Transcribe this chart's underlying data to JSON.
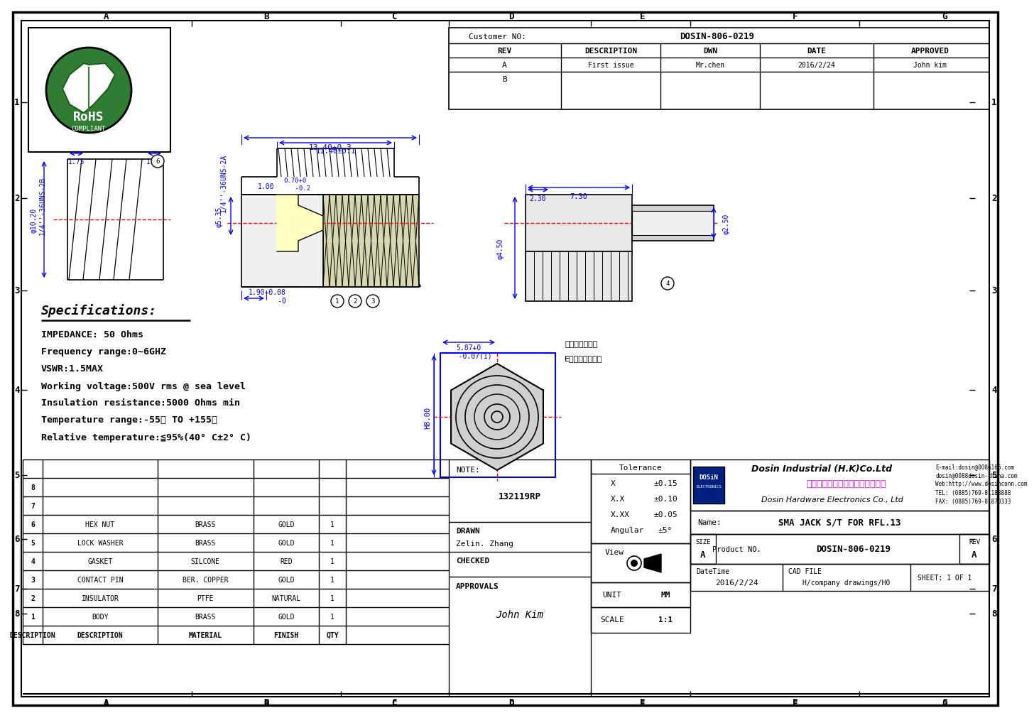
{
  "page_bg": "#ffffff",
  "border_color": "#000000",
  "blue": "#0000ff",
  "red": "#ff0000",
  "black": "#000000",
  "magenta": "#ff00ff",
  "title_block": {
    "customer_no_label": "Customer NO:",
    "customer_no_value": "DOSIN-806-0219",
    "rev": "REV",
    "description": "DESCRIPTION",
    "dwn": "DWN",
    "date": "DATE",
    "approved": "APPROVED",
    "row_a_desc": "First issue",
    "row_a_dwn": "Mr.chen",
    "row_a_date": "2016/2/24",
    "row_a_approved": "John kim"
  },
  "specs": {
    "title": "Specifications:",
    "lines": [
      "IMPEDANCE: 50 Ohms",
      "Frequency range:0~6GHZ",
      "VSWR:1.5MAX",
      "Working voltage:500V rms @ sea level",
      "Insulation resistance:5000 Ohms min",
      "Temperature range:-55℃ TO +155℃",
      "Relative temperature:≦95%(40° C±2° C)"
    ]
  },
  "bom_table": {
    "row_labels": [
      "",
      "8",
      "7",
      "6",
      "5",
      "4",
      "3",
      "2",
      "1",
      "DESCRIPTION"
    ],
    "desc_col": [
      "",
      "",
      "",
      "HEX NUT",
      "LOCK WASHER",
      "GASKET",
      "CONTACT PIN",
      "INSULATOR",
      "BODY",
      "DESCRIPTION"
    ],
    "mat_col": [
      "",
      "",
      "",
      "BRASS",
      "BRASS",
      "SILCONE",
      "BER. COPPER",
      "PTFE",
      "BRASS",
      "MATERIAL"
    ],
    "fin_col": [
      "",
      "",
      "",
      "GOLD",
      "GOLD",
      "RED",
      "GOLD",
      "NATURAL",
      "GOLD",
      "FINISH"
    ],
    "qty_col": [
      "",
      "",
      "",
      "1",
      "1",
      "1",
      "1",
      "1",
      "1",
      "QTY"
    ]
  },
  "title_info": {
    "note_label": "NOTE:",
    "note_value": "132119RP",
    "drawn_label": "DRAWN",
    "drawn_value": "Zelin. Zhang",
    "checked_label": "CHECKED",
    "approvals_label": "APPROVALS",
    "tolerance_label": "Tolerance",
    "tolerance_rows": [
      [
        "X",
        "±0.15"
      ],
      [
        "X.X",
        "±0.10"
      ],
      [
        "X.XX",
        "±0.05"
      ],
      [
        "Angular",
        "±5°"
      ]
    ],
    "view_label": "View",
    "unit_label": "UNIT",
    "unit_value": "MM",
    "scale_label": "SCALE",
    "scale_value": "1:1",
    "size_label": "SIZE",
    "size_value": "A",
    "product_no_label": "Product NO.",
    "product_no_value": "DOSIN-806-0219",
    "rev_label": "REV",
    "rev_value": "A",
    "datetime_label": "DateTime",
    "datetime_value": "2016/2/24",
    "cad_file_label": "CAD FILE",
    "cad_file_value": "H/company drawings/H0",
    "sheet_label": "SHEET: 1 OF 1",
    "name_label": "Name:",
    "name_value": "SMA JACK S/T FOR RFL.13"
  },
  "company": {
    "dosin_label": "DOSiN",
    "dosin_subtitle": "Dosin Industrial (H.K)Co.Ltd",
    "chinese": "东莞市鷄金五金电子制品有限公司",
    "english": "Dosin Hardware Electronics Co., Ltd",
    "email1": "E-mail:dosin@0086166.com",
    "email2": "dosin@0088dosin-china.com",
    "web": "Web:http://www.dosinconn.com",
    "tel": "TEL: (0885)769-81188888",
    "fax": "FAX: (0885)769-81870333"
  },
  "dims": {
    "width_13_40": "13.40±0.3",
    "width_11_40": "11.40±0.1",
    "width_1_00": "1.00",
    "width_0_70": "0.70+0\n    -0.2",
    "thread_2A": "1/4''-36UNS-2A",
    "thread_2B": "1/4''-36UNS-2B",
    "dim_5_35": "φ5.35",
    "dim_10_20": "φ10.20",
    "dim_1_75": "1.75",
    "dim_1_10": "1.10",
    "dim_1_90": "1.90+0.08\n       -0",
    "right_7_30": "7.30",
    "right_2_30": "2.30",
    "right_2_50": "φ2.50",
    "right_4_50": "φ4.50",
    "dim_5_87": "5.87+0\n   -0.07(1)",
    "dim_H8": "H8.00",
    "chinese_note1": "此平面终中贴画",
    "chinese_note2": "E倒正大端承焉角"
  }
}
